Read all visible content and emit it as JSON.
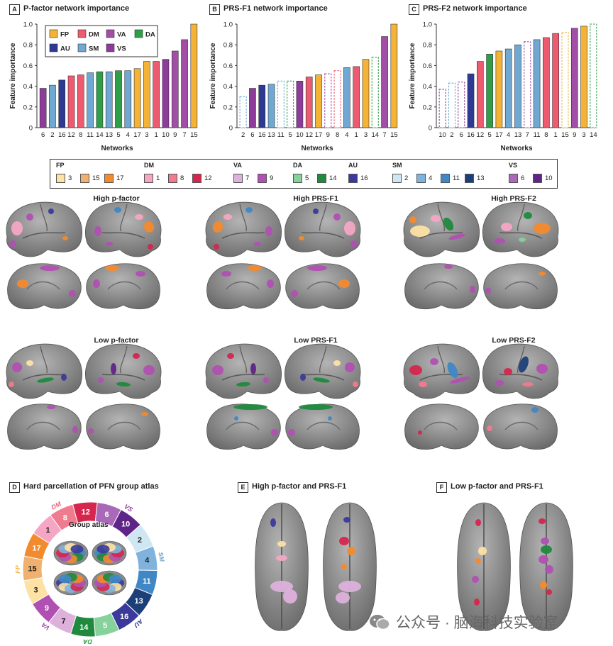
{
  "colors": {
    "FP": "#f5b335",
    "DM": "#ee5a6f",
    "VA": "#a24da6",
    "DA": "#2e9e47",
    "AU": "#2c3a94",
    "SM": "#6fa8d3",
    "VS": "#8e3b9c",
    "n1": "#f4a6c4",
    "n2": "#cfe6f3",
    "n3": "#fde2a4",
    "n4": "#7fb3de",
    "n5": "#87d19a",
    "n6": "#a968b8",
    "n7": "#ddb1dc",
    "n8": "#f07a8e",
    "n9": "#b050b2",
    "n10": "#5f2488",
    "n11": "#3f88c5",
    "n12": "#d6264e",
    "n13": "#1d3f78",
    "n14": "#1f8a3e",
    "n15": "#f0b070",
    "n16": "#3b3a9a",
    "n17": "#f28a2e"
  },
  "panels": {
    "A": {
      "letter": "A",
      "title": "P-factor network importance"
    },
    "B": {
      "letter": "B",
      "title": "PRS-F1 network importance"
    },
    "C": {
      "letter": "C",
      "title": "PRS-F2 network importance"
    },
    "D": {
      "letter": "D",
      "title": "Hard parcellation of PFN group atlas"
    },
    "E": {
      "letter": "E",
      "title": "High p-factor and PRS-F1"
    },
    "F": {
      "letter": "F",
      "title": "Low p-factor and PRS-F1"
    }
  },
  "chart_data": [
    {
      "type": "bar",
      "title": "P-factor network importance",
      "xlabel": "Networks",
      "ylabel": "Feature importance",
      "ylim": [
        0,
        1.0
      ],
      "yticks": [
        "0",
        "0.2",
        "0.4",
        "0.6",
        "0.8",
        "1.0"
      ],
      "categories": [
        "6",
        "2",
        "16",
        "12",
        "8",
        "11",
        "14",
        "13",
        "5",
        "4",
        "17",
        "3",
        "1",
        "10",
        "9",
        "7",
        "15"
      ],
      "values": [
        0.38,
        0.41,
        0.46,
        0.5,
        0.51,
        0.53,
        0.54,
        0.54,
        0.55,
        0.55,
        0.57,
        0.64,
        0.64,
        0.66,
        0.74,
        0.85,
        1.0
      ],
      "groups": [
        "VS",
        "SM",
        "AU",
        "DM",
        "DM",
        "SM",
        "DA",
        "SM",
        "DA",
        "SM",
        "FP",
        "FP",
        "DM",
        "VS",
        "VA",
        "VA",
        "FP"
      ],
      "dashed": [
        false,
        false,
        false,
        false,
        false,
        false,
        false,
        false,
        false,
        false,
        false,
        false,
        false,
        false,
        false,
        false,
        false
      ],
      "legend": [
        "FP",
        "DM",
        "VA",
        "DA",
        "AU",
        "SM",
        "VS"
      ]
    },
    {
      "type": "bar",
      "title": "PRS-F1 network importance",
      "xlabel": "Networks",
      "ylabel": "Feature importance",
      "ylim": [
        0,
        1.0
      ],
      "yticks": [
        "0",
        "0.2",
        "0.4",
        "0.6",
        "0.8",
        "1.0"
      ],
      "categories": [
        "2",
        "6",
        "16",
        "13",
        "11",
        "5",
        "10",
        "12",
        "17",
        "9",
        "8",
        "4",
        "1",
        "3",
        "14",
        "7",
        "15"
      ],
      "values": [
        0.3,
        0.38,
        0.41,
        0.42,
        0.45,
        0.45,
        0.45,
        0.49,
        0.51,
        0.52,
        0.55,
        0.58,
        0.59,
        0.66,
        0.68,
        0.88,
        1.0
      ],
      "groups": [
        "SM",
        "VS",
        "AU",
        "SM",
        "SM",
        "DA",
        "VS",
        "DM",
        "FP",
        "VA",
        "DM",
        "SM",
        "DM",
        "FP",
        "DA",
        "VA",
        "FP"
      ],
      "dashed": [
        true,
        false,
        false,
        false,
        true,
        true,
        false,
        false,
        false,
        true,
        true,
        false,
        false,
        false,
        true,
        false,
        false
      ]
    },
    {
      "type": "bar",
      "title": "PRS-F2 network importance",
      "xlabel": "Networks",
      "ylabel": "Feature importance",
      "ylim": [
        0,
        1.0
      ],
      "yticks": [
        "0",
        "0.2",
        "0.4",
        "0.6",
        "0.8",
        "1.0"
      ],
      "categories": [
        "10",
        "2",
        "6",
        "16",
        "12",
        "5",
        "17",
        "4",
        "13",
        "7",
        "11",
        "8",
        "1",
        "15",
        "9",
        "3",
        "14"
      ],
      "values": [
        0.37,
        0.43,
        0.44,
        0.52,
        0.64,
        0.71,
        0.74,
        0.76,
        0.8,
        0.83,
        0.85,
        0.87,
        0.91,
        0.92,
        0.96,
        0.98,
        1.0
      ],
      "groups": [
        "VS",
        "SM",
        "VS",
        "AU",
        "DM",
        "DA",
        "FP",
        "SM",
        "SM",
        "VA",
        "SM",
        "DM",
        "DM",
        "FP",
        "VA",
        "FP",
        "DA"
      ],
      "dashed": [
        true,
        true,
        true,
        false,
        false,
        false,
        false,
        false,
        false,
        true,
        false,
        false,
        false,
        true,
        false,
        false,
        true
      ]
    }
  ],
  "legend_networks": [
    {
      "group": "FP",
      "items": [
        [
          "3",
          "n3"
        ],
        [
          "15",
          "n15"
        ],
        [
          "17",
          "n17"
        ]
      ]
    },
    {
      "group": "DM",
      "items": [
        [
          "1",
          "n1"
        ],
        [
          "8",
          "n8"
        ],
        [
          "12",
          "n12"
        ]
      ]
    },
    {
      "group": "VA",
      "items": [
        [
          "7",
          "n7"
        ],
        [
          "9",
          "n9"
        ]
      ]
    },
    {
      "group": "DA",
      "items": [
        [
          "5",
          "n5"
        ],
        [
          "14",
          "n14"
        ]
      ]
    },
    {
      "group": "AU",
      "items": [
        [
          "16",
          "n16"
        ]
      ]
    },
    {
      "group": "SM",
      "items": [
        [
          "2",
          "n2"
        ],
        [
          "4",
          "n4"
        ],
        [
          "11",
          "n11"
        ],
        [
          "13",
          "n13"
        ]
      ]
    },
    {
      "group": "VS",
      "items": [
        [
          "6",
          "n6"
        ],
        [
          "10",
          "n10"
        ]
      ]
    }
  ],
  "brain_labels": {
    "high_p": "High p-factor",
    "high_f1": "High PRS-F1",
    "high_f2": "High PRS-F2",
    "low_p": "Low p-factor",
    "low_f1": "Low PRS-F1",
    "low_f2": "Low PRS-F2"
  },
  "ring": {
    "center_label": "Group atlas",
    "segments": [
      [
        "12",
        "n12"
      ],
      [
        "6",
        "n6"
      ],
      [
        "10",
        "n10"
      ],
      [
        "2",
        "n2"
      ],
      [
        "4",
        "n4"
      ],
      [
        "11",
        "n11"
      ],
      [
        "13",
        "n13"
      ],
      [
        "16",
        "n16"
      ],
      [
        "5",
        "n5"
      ],
      [
        "14",
        "n14"
      ],
      [
        "7",
        "n7"
      ],
      [
        "9",
        "n9"
      ],
      [
        "3",
        "n3"
      ],
      [
        "15",
        "n15"
      ],
      [
        "17",
        "n17"
      ],
      [
        "1",
        "n1"
      ],
      [
        "8",
        "n8"
      ]
    ],
    "group_labels": [
      "DM",
      "VS",
      "SM",
      "AU",
      "DA",
      "VA",
      "FP"
    ]
  },
  "watermark": "公众号 · 脑海科技实验室"
}
